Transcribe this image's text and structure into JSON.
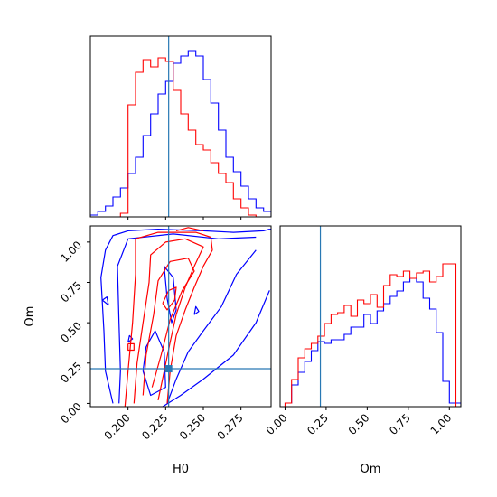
{
  "chart_data": {
    "type": "corner",
    "parameters": [
      "H0",
      "Om"
    ],
    "truth": {
      "H0": 0.227,
      "Om": 0.215
    },
    "colors": {
      "series_a": "#0000ff",
      "series_b": "#ff0000",
      "truth": "#2878b4"
    },
    "grid": false,
    "panels": [
      {
        "id": "hist-H0",
        "type": "step-histogram",
        "xlim": [
          0.175,
          0.295
        ],
        "ylim": [
          0,
          1.0
        ],
        "xticks": [
          0.2,
          0.225,
          0.25,
          0.275
        ],
        "yticks": [],
        "bin_edges": [
          0.175,
          0.18,
          0.185,
          0.19,
          0.195,
          0.2,
          0.205,
          0.21,
          0.215,
          0.22,
          0.225,
          0.23,
          0.235,
          0.24,
          0.245,
          0.25,
          0.255,
          0.26,
          0.265,
          0.27,
          0.275,
          0.28,
          0.285,
          0.29,
          0.295
        ],
        "series": [
          {
            "color_key": "series_a",
            "values": [
              0.01,
              0.03,
              0.06,
              0.11,
              0.16,
              0.24,
              0.33,
              0.45,
              0.57,
              0.68,
              0.75,
              0.85,
              0.89,
              0.92,
              0.89,
              0.76,
              0.63,
              0.48,
              0.33,
              0.25,
              0.17,
              0.1,
              0.05,
              0.03
            ]
          },
          {
            "color_key": "series_b",
            "values": [
              0.0,
              0.0,
              0.0,
              0.0,
              0.02,
              0.62,
              0.8,
              0.87,
              0.83,
              0.88,
              0.86,
              0.7,
              0.57,
              0.48,
              0.4,
              0.37,
              0.3,
              0.24,
              0.19,
              0.1,
              0.05,
              0.01,
              0.0,
              0.0
            ]
          }
        ]
      },
      {
        "id": "hist-Om",
        "type": "step-histogram",
        "xlim": [
          -0.03,
          1.07
        ],
        "ylim": [
          0,
          1.0
        ],
        "xticks": [
          0.0,
          0.25,
          0.5,
          0.75,
          1.0
        ],
        "xtick_labels": [
          "0.00",
          "0.25",
          "0.50",
          "0.75",
          "1.00"
        ],
        "yticks": [],
        "bin_edges": [
          0.0,
          0.04,
          0.08,
          0.12,
          0.16,
          0.2,
          0.24,
          0.28,
          0.32,
          0.36,
          0.4,
          0.44,
          0.48,
          0.52,
          0.56,
          0.6,
          0.64,
          0.68,
          0.72,
          0.76,
          0.8,
          0.84,
          0.88,
          0.92,
          0.96,
          1.0,
          1.04,
          1.07
        ],
        "series": [
          {
            "color_key": "series_a",
            "values": [
              0.02,
              0.12,
              0.19,
              0.25,
              0.31,
              0.36,
              0.35,
              0.37,
              0.37,
              0.4,
              0.44,
              0.44,
              0.51,
              0.46,
              0.53,
              0.57,
              0.61,
              0.64,
              0.69,
              0.71,
              0.69,
              0.6,
              0.54,
              0.41,
              0.14,
              0.02,
              0.02
            ]
          },
          {
            "color_key": "series_b",
            "values": [
              0.02,
              0.15,
              0.27,
              0.32,
              0.35,
              0.39,
              0.46,
              0.51,
              0.52,
              0.56,
              0.5,
              0.59,
              0.57,
              0.62,
              0.55,
              0.67,
              0.73,
              0.72,
              0.75,
              0.71,
              0.74,
              0.75,
              0.69,
              0.72,
              0.79,
              0.79,
              0.0
            ]
          }
        ]
      },
      {
        "id": "contour-H0-Om",
        "type": "contour",
        "xlabel": "H0",
        "ylabel": "Om",
        "xlim": [
          0.175,
          0.295
        ],
        "ylim": [
          -0.02,
          1.1
        ],
        "xticks": [
          0.2,
          0.225,
          0.25,
          0.275
        ],
        "xtick_labels": [
          "0.200",
          "0.225",
          "0.250",
          "0.275"
        ],
        "yticks": [
          0.0,
          0.25,
          0.5,
          0.75,
          1.0
        ],
        "ytick_labels": [
          "0.00",
          "0.25",
          "0.50",
          "0.75",
          "1.00"
        ],
        "series": [
          {
            "color_key": "series_a",
            "lines": [
              [
                [
                  0.19,
                  0.0
                ],
                [
                  0.185,
                  0.2
                ],
                [
                  0.184,
                  0.45
                ],
                [
                  0.182,
                  0.78
                ],
                [
                  0.185,
                  0.95
                ],
                [
                  0.19,
                  1.04
                ],
                [
                  0.2,
                  1.07
                ],
                [
                  0.22,
                  1.08
                ],
                [
                  0.25,
                  1.07
                ],
                [
                  0.27,
                  1.06
                ],
                [
                  0.29,
                  1.07
                ],
                [
                  0.294,
                  1.08
                ]
              ],
              [
                [
                  0.294,
                  0.7
                ],
                [
                  0.285,
                  0.5
                ],
                [
                  0.27,
                  0.3
                ],
                [
                  0.25,
                  0.15
                ],
                [
                  0.235,
                  0.05
                ],
                [
                  0.223,
                  -0.02
                ]
              ],
              [
                [
                  0.194,
                  0.0
                ],
                [
                  0.195,
                  0.2
                ],
                [
                  0.194,
                  0.5
                ],
                [
                  0.193,
                  0.85
                ],
                [
                  0.2,
                  1.02
                ],
                [
                  0.23,
                  1.05
                ],
                [
                  0.26,
                  1.02
                ],
                [
                  0.285,
                  1.03
                ]
              ],
              [
                [
                  0.285,
                  0.95
                ],
                [
                  0.272,
                  0.8
                ],
                [
                  0.262,
                  0.6
                ],
                [
                  0.25,
                  0.45
                ],
                [
                  0.24,
                  0.32
                ],
                [
                  0.232,
                  0.15
                ],
                [
                  0.226,
                  0.0
                ]
              ],
              [
                [
                  0.224,
                  0.85
                ],
                [
                  0.226,
                  0.65
                ],
                [
                  0.229,
                  0.5
                ],
                [
                  0.232,
                  0.58
                ],
                [
                  0.23,
                  0.78
                ],
                [
                  0.224,
                  0.85
                ]
              ],
              [
                [
                  0.21,
                  0.2
                ],
                [
                  0.212,
                  0.35
                ],
                [
                  0.218,
                  0.45
                ],
                [
                  0.224,
                  0.32
                ],
                [
                  0.225,
                  0.1
                ],
                [
                  0.215,
                  0.05
                ],
                [
                  0.21,
                  0.2
                ]
              ],
              [
                [
                  0.183,
                  0.64
                ],
                [
                  0.187,
                  0.61
                ],
                [
                  0.186,
                  0.66
                ],
                [
                  0.183,
                  0.64
                ]
              ],
              [
                [
                  0.2,
                  0.38
                ],
                [
                  0.203,
                  0.4
                ],
                [
                  0.201,
                  0.42
                ],
                [
                  0.2,
                  0.38
                ]
              ],
              [
                [
                  0.244,
                  0.55
                ],
                [
                  0.247,
                  0.57
                ],
                [
                  0.245,
                  0.6
                ],
                [
                  0.244,
                  0.55
                ]
              ],
              [
                [
                  0.294,
                  1.08
                ],
                [
                  0.296,
                  1.08
                ]
              ]
            ]
          },
          {
            "color_key": "series_b",
            "lines": [
              [
                [
                  0.198,
                  -0.02
                ],
                [
                  0.2,
                  0.2
                ],
                [
                  0.203,
                  0.5
                ],
                [
                  0.205,
                  0.8
                ],
                [
                  0.205,
                  1.02
                ],
                [
                  0.22,
                  1.06
                ],
                [
                  0.245,
                  1.06
                ],
                [
                  0.255,
                  1.03
                ],
                [
                  0.256,
                  0.95
                ],
                [
                  0.25,
                  0.85
                ],
                [
                  0.244,
                  0.72
                ],
                [
                  0.238,
                  0.58
                ],
                [
                  0.232,
                  0.42
                ],
                [
                  0.228,
                  0.2
                ],
                [
                  0.226,
                  0.0
                ]
              ],
              [
                [
                  0.204,
                  0.0
                ],
                [
                  0.206,
                  0.25
                ],
                [
                  0.21,
                  0.5
                ],
                [
                  0.214,
                  0.75
                ],
                [
                  0.215,
                  0.92
                ],
                [
                  0.225,
                  1.0
                ],
                [
                  0.238,
                  1.02
                ],
                [
                  0.25,
                  0.97
                ],
                [
                  0.244,
                  0.85
                ],
                [
                  0.238,
                  0.72
                ],
                [
                  0.232,
                  0.55
                ],
                [
                  0.228,
                  0.38
                ],
                [
                  0.224,
                  0.2
                ],
                [
                  0.22,
                  0.02
                ]
              ],
              [
                [
                  0.21,
                  0.05
                ],
                [
                  0.212,
                  0.3
                ],
                [
                  0.217,
                  0.55
                ],
                [
                  0.22,
                  0.76
                ],
                [
                  0.228,
                  0.88
                ],
                [
                  0.24,
                  0.9
                ],
                [
                  0.244,
                  0.82
                ],
                [
                  0.236,
                  0.7
                ],
                [
                  0.228,
                  0.52
                ],
                [
                  0.222,
                  0.3
                ],
                [
                  0.216,
                  0.1
                ]
              ],
              [
                [
                  0.223,
                  0.62
                ],
                [
                  0.227,
                  0.7
                ],
                [
                  0.232,
                  0.72
                ],
                [
                  0.231,
                  0.64
                ],
                [
                  0.226,
                  0.58
                ],
                [
                  0.223,
                  0.62
                ]
              ],
              [
                [
                  0.2,
                  0.37
                ],
                [
                  0.204,
                  0.37
                ],
                [
                  0.204,
                  0.33
                ],
                [
                  0.2,
                  0.33
                ],
                [
                  0.2,
                  0.37
                ]
              ],
              [
                [
                  0.232,
                  1.07
                ],
                [
                  0.24,
                  1.09
                ],
                [
                  0.25,
                  1.07
                ]
              ]
            ]
          }
        ]
      }
    ]
  }
}
